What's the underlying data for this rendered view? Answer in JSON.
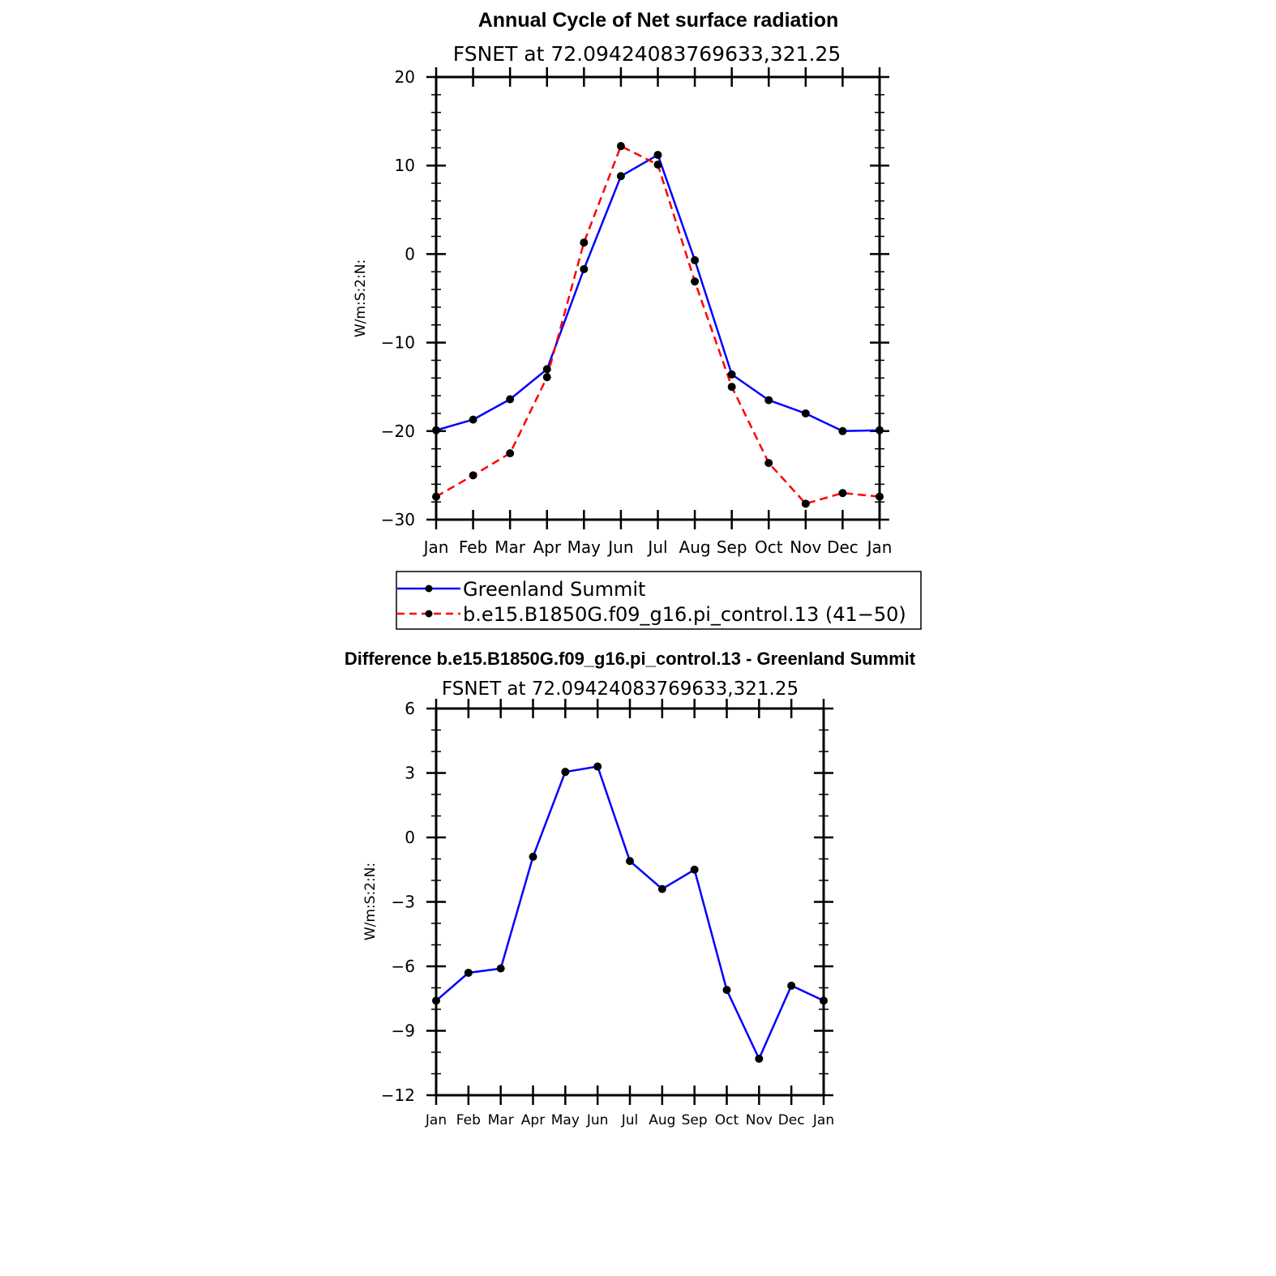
{
  "figure": {
    "title": "Annual Cycle of Net surface radiation",
    "diff_title": "Difference b.e15.B1850G.f09_g16.pi_control.13 - Greenland Summit"
  },
  "colors": {
    "obs": "#0000ff",
    "model": "#ff0000",
    "diff": "#0000ff",
    "marker": "#000000"
  },
  "chart_data": [
    {
      "type": "line",
      "subtitle": "FSNET at 72.09424083769633,321.25",
      "ylabel": "W/m:S:2:N:",
      "xlabel": "",
      "categories": [
        "Jan",
        "Feb",
        "Mar",
        "Apr",
        "May",
        "Jun",
        "Jul",
        "Aug",
        "Sep",
        "Oct",
        "Nov",
        "Dec",
        "Jan"
      ],
      "ylim": [
        -30,
        20
      ],
      "yticks": [
        20,
        10,
        0,
        -10,
        -20,
        -30
      ],
      "ytick_labels": [
        "20",
        "10",
        "0",
        "−10",
        "−20",
        "−30"
      ],
      "grid": false,
      "legend_placement": "bottom",
      "series": [
        {
          "name": "Greenland Summit",
          "style": "solid",
          "values": [
            -19.9,
            -18.7,
            -16.4,
            -13.0,
            -1.7,
            8.8,
            11.2,
            -0.7,
            -13.6,
            -16.5,
            -18.0,
            -20.0,
            -19.9
          ]
        },
        {
          "name": "b.e15.B1850G.f09_g16.pi_control.13 (41−50)",
          "style": "dashed",
          "values": [
            -27.4,
            -25.0,
            -22.5,
            -13.9,
            1.3,
            12.2,
            10.1,
            -3.1,
            -15.0,
            -23.6,
            -28.2,
            -27.0,
            -27.4
          ]
        }
      ]
    },
    {
      "type": "line",
      "subtitle": "FSNET at 72.09424083769633,321.25",
      "ylabel": "W/m:S:2:N:",
      "xlabel": "",
      "categories": [
        "Jan",
        "Feb",
        "Mar",
        "Apr",
        "May",
        "Jun",
        "Jul",
        "Aug",
        "Sep",
        "Oct",
        "Nov",
        "Dec",
        "Jan"
      ],
      "ylim": [
        -12,
        6
      ],
      "yticks": [
        6,
        3,
        0,
        -3,
        -6,
        -9,
        -12
      ],
      "ytick_labels": [
        "6",
        "3",
        "0",
        "−3",
        "−6",
        "−9",
        "−12"
      ],
      "grid": false,
      "series": [
        {
          "style": "solid",
          "values": [
            -7.6,
            -6.3,
            -6.1,
            -0.9,
            3.05,
            3.3,
            -1.1,
            -2.4,
            -1.5,
            -7.1,
            -10.3,
            -6.9,
            -7.6
          ]
        }
      ]
    }
  ]
}
